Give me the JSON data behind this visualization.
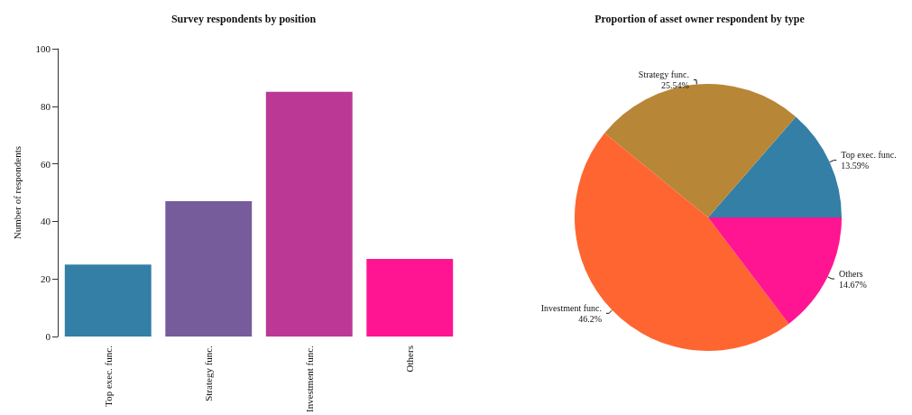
{
  "chart_data": [
    {
      "type": "bar",
      "title": "Survey respondents by position",
      "ylabel": "Number of respondents",
      "categories": [
        "Top exec. func.",
        "Strategy func.",
        "Investment func.",
        "Others"
      ],
      "values": [
        25,
        47,
        85,
        27
      ],
      "colors": [
        "#337fa5",
        "#775c9c",
        "#bb3894",
        "#ff1592"
      ],
      "ylim": [
        0,
        100
      ],
      "yticks": [
        0,
        20,
        40,
        60,
        80,
        100
      ],
      "grid": false
    },
    {
      "type": "pie",
      "title": "Proportion of asset owner respondent by type",
      "categories": [
        "Top exec. func.",
        "Strategy func.",
        "Investment func.",
        "Others"
      ],
      "values": [
        13.59,
        25.54,
        46.2,
        14.67
      ],
      "colors": [
        "#337fa5",
        "#b88637",
        "#ff6530",
        "#ff1592"
      ],
      "value_labels": [
        "13.59%",
        "25.54%",
        "46.2%",
        "14.67%"
      ]
    }
  ]
}
